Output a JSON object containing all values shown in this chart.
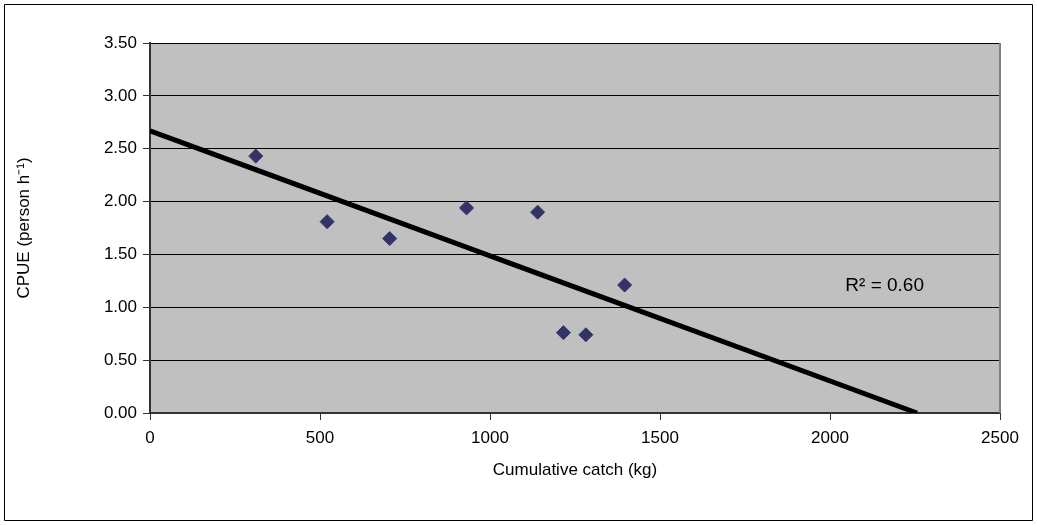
{
  "chart_data": {
    "type": "scatter",
    "xlabel": "Cumulative catch (kg)",
    "ylabel": "CPUE (person h⁻¹)",
    "series": [
      {
        "type": "scatter",
        "color": "#333366",
        "marker": "diamond",
        "x": [
          311,
          521,
          705,
          931,
          1140,
          1216,
          1282,
          1396
        ],
        "values": [
          2.43,
          1.81,
          1.65,
          1.94,
          1.9,
          0.76,
          0.74,
          1.21
        ]
      },
      {
        "type": "line",
        "color": "#000000",
        "marker": "none",
        "line_style": "solid",
        "x": [
          0,
          2256
        ],
        "values": [
          2.67,
          0
        ]
      }
    ],
    "xlim": [
      0,
      2500
    ],
    "xticks": [
      0,
      500,
      1000,
      1500,
      2000,
      2500
    ],
    "ylim": [
      0,
      3.5
    ],
    "yticks": [
      {
        "value": 0,
        "label": "0.00"
      },
      {
        "value": 0.5,
        "label": "0.50"
      },
      {
        "value": 1,
        "label": "1.00"
      },
      {
        "value": 1.5,
        "label": "1.50"
      },
      {
        "value": 2,
        "label": "2.00"
      },
      {
        "value": 2.5,
        "label": "2.50"
      },
      {
        "value": 3,
        "label": "3.00"
      },
      {
        "value": 3.5,
        "label": "3.50"
      }
    ],
    "grid": "y",
    "legend": false,
    "annotations": [
      "R² = 0.60"
    ]
  }
}
